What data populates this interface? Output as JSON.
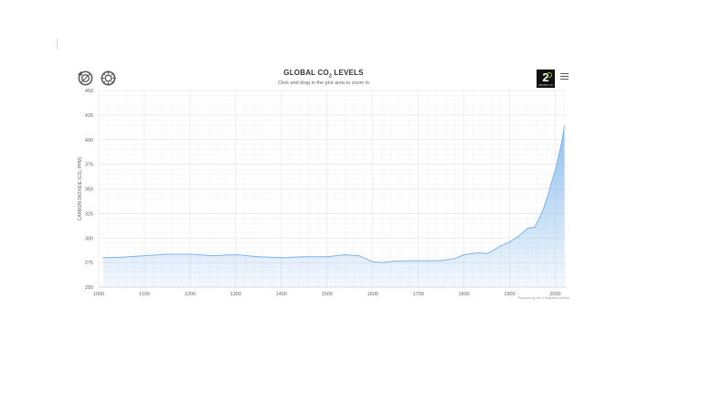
{
  "toolbar": {
    "reset_icon": "reset-zoom-icon",
    "zoom_icon": "zoom-icon",
    "menu_icon": "hamburger-menu-icon",
    "logo_text": "2",
    "logo_tag": "PROTECT 2C"
  },
  "credit": "Powered by the 2 Degrees Institute",
  "colors": {
    "area": "#9ec9ee",
    "line": "#7cb5ec",
    "grid": "#e6e6e6"
  },
  "chart_data": {
    "type": "area",
    "title": "GLOBAL CO",
    "title_sub": "2",
    "title_suffix": " LEVELS",
    "subtitle": "Click and drag in the plot area to zoom in",
    "ylabel": "CARBON DIOXIDE (CO2 PPM)",
    "ylabel_parts": [
      "CARBON DIOXIDE (CO",
      "2",
      " PPM)"
    ],
    "xlabel": "",
    "xlim": [
      1000,
      2025
    ],
    "ylim": [
      250,
      450
    ],
    "xticks": [
      1000,
      1100,
      1200,
      1300,
      1400,
      1500,
      1600,
      1700,
      1800,
      1900,
      2000
    ],
    "yticks": [
      250,
      275,
      300,
      325,
      350,
      375,
      400,
      425,
      450
    ],
    "grid": true,
    "legend": "none",
    "series": [
      {
        "x": [
          1010,
          1050,
          1100,
          1150,
          1200,
          1250,
          1300,
          1350,
          1400,
          1450,
          1500,
          1540,
          1570,
          1600,
          1620,
          1650,
          1700,
          1750,
          1780,
          1800,
          1830,
          1850,
          1870,
          1880,
          1900,
          1920,
          1940,
          1955,
          1960,
          1965,
          1970,
          1975,
          1980,
          1985,
          1990,
          1995,
          2000,
          2005,
          2010,
          2015,
          2020
        ],
        "y": [
          280,
          280.5,
          282,
          283.5,
          283.5,
          282,
          283,
          281,
          280,
          281,
          281,
          283,
          282,
          276,
          275,
          276.5,
          277,
          277,
          279,
          283,
          285,
          284,
          289,
          292,
          296,
          302,
          310,
          311,
          316,
          320,
          325,
          331,
          338,
          345,
          354,
          361,
          369,
          379,
          389,
          400,
          414
        ]
      }
    ]
  }
}
